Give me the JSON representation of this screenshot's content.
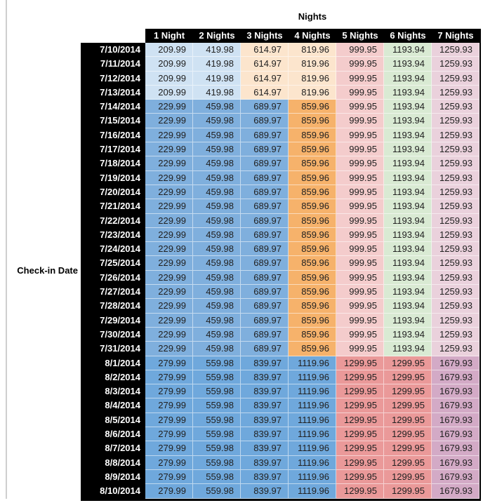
{
  "chart_data": {
    "type": "table",
    "title": "Nights",
    "row_axis_label": "Check-in Date",
    "columns": [
      "1 Night",
      "2 Nights",
      "3 Nights",
      "4 Nights",
      "5 Nights",
      "6 Nights",
      "7 Nights"
    ],
    "rows": [
      {
        "date": "7/10/2014",
        "group": "early_july",
        "values": [
          "209.99",
          "419.98",
          "614.97",
          "819.96",
          "999.95",
          "1193.94",
          "1259.93"
        ]
      },
      {
        "date": "7/11/2014",
        "group": "early_july",
        "values": [
          "209.99",
          "419.98",
          "614.97",
          "819.96",
          "999.95",
          "1193.94",
          "1259.93"
        ]
      },
      {
        "date": "7/12/2014",
        "group": "early_july",
        "values": [
          "209.99",
          "419.98",
          "614.97",
          "819.96",
          "999.95",
          "1193.94",
          "1259.93"
        ]
      },
      {
        "date": "7/13/2014",
        "group": "early_july",
        "values": [
          "209.99",
          "419.98",
          "614.97",
          "819.96",
          "999.95",
          "1193.94",
          "1259.93"
        ]
      },
      {
        "date": "7/14/2014",
        "group": "mid_july",
        "values": [
          "229.99",
          "459.98",
          "689.97",
          "859.96",
          "999.95",
          "1193.94",
          "1259.93"
        ]
      },
      {
        "date": "7/15/2014",
        "group": "mid_july",
        "values": [
          "229.99",
          "459.98",
          "689.97",
          "859.96",
          "999.95",
          "1193.94",
          "1259.93"
        ]
      },
      {
        "date": "7/16/2014",
        "group": "mid_july",
        "values": [
          "229.99",
          "459.98",
          "689.97",
          "859.96",
          "999.95",
          "1193.94",
          "1259.93"
        ]
      },
      {
        "date": "7/17/2014",
        "group": "mid_july",
        "values": [
          "229.99",
          "459.98",
          "689.97",
          "859.96",
          "999.95",
          "1193.94",
          "1259.93"
        ]
      },
      {
        "date": "7/18/2014",
        "group": "mid_july",
        "values": [
          "229.99",
          "459.98",
          "689.97",
          "859.96",
          "999.95",
          "1193.94",
          "1259.93"
        ]
      },
      {
        "date": "7/19/2014",
        "group": "mid_july",
        "values": [
          "229.99",
          "459.98",
          "689.97",
          "859.96",
          "999.95",
          "1193.94",
          "1259.93"
        ]
      },
      {
        "date": "7/20/2014",
        "group": "mid_july",
        "values": [
          "229.99",
          "459.98",
          "689.97",
          "859.96",
          "999.95",
          "1193.94",
          "1259.93"
        ]
      },
      {
        "date": "7/21/2014",
        "group": "mid_july",
        "values": [
          "229.99",
          "459.98",
          "689.97",
          "859.96",
          "999.95",
          "1193.94",
          "1259.93"
        ]
      },
      {
        "date": "7/22/2014",
        "group": "mid_july",
        "values": [
          "229.99",
          "459.98",
          "689.97",
          "859.96",
          "999.95",
          "1193.94",
          "1259.93"
        ]
      },
      {
        "date": "7/23/2014",
        "group": "mid_july",
        "values": [
          "229.99",
          "459.98",
          "689.97",
          "859.96",
          "999.95",
          "1193.94",
          "1259.93"
        ]
      },
      {
        "date": "7/24/2014",
        "group": "mid_july",
        "values": [
          "229.99",
          "459.98",
          "689.97",
          "859.96",
          "999.95",
          "1193.94",
          "1259.93"
        ]
      },
      {
        "date": "7/25/2014",
        "group": "mid_july",
        "values": [
          "229.99",
          "459.98",
          "689.97",
          "859.96",
          "999.95",
          "1193.94",
          "1259.93"
        ]
      },
      {
        "date": "7/26/2014",
        "group": "mid_july",
        "values": [
          "229.99",
          "459.98",
          "689.97",
          "859.96",
          "999.95",
          "1193.94",
          "1259.93"
        ]
      },
      {
        "date": "7/27/2014",
        "group": "mid_july",
        "values": [
          "229.99",
          "459.98",
          "689.97",
          "859.96",
          "999.95",
          "1193.94",
          "1259.93"
        ]
      },
      {
        "date": "7/28/2014",
        "group": "mid_july",
        "values": [
          "229.99",
          "459.98",
          "689.97",
          "859.96",
          "999.95",
          "1193.94",
          "1259.93"
        ]
      },
      {
        "date": "7/29/2014",
        "group": "mid_july",
        "values": [
          "229.99",
          "459.98",
          "689.97",
          "859.96",
          "999.95",
          "1193.94",
          "1259.93"
        ]
      },
      {
        "date": "7/30/2014",
        "group": "mid_july",
        "values": [
          "229.99",
          "459.98",
          "689.97",
          "859.96",
          "999.95",
          "1193.94",
          "1259.93"
        ]
      },
      {
        "date": "7/31/2014",
        "group": "mid_july",
        "values": [
          "229.99",
          "459.98",
          "689.97",
          "859.96",
          "999.95",
          "1193.94",
          "1259.93"
        ]
      },
      {
        "date": "8/1/2014",
        "group": "august",
        "values": [
          "279.99",
          "559.98",
          "839.97",
          "1119.96",
          "1299.95",
          "1299.95",
          "1679.93"
        ]
      },
      {
        "date": "8/2/2014",
        "group": "august",
        "values": [
          "279.99",
          "559.98",
          "839.97",
          "1119.96",
          "1299.95",
          "1299.95",
          "1679.93"
        ]
      },
      {
        "date": "8/3/2014",
        "group": "august",
        "values": [
          "279.99",
          "559.98",
          "839.97",
          "1119.96",
          "1299.95",
          "1299.95",
          "1679.93"
        ]
      },
      {
        "date": "8/4/2014",
        "group": "august",
        "values": [
          "279.99",
          "559.98",
          "839.97",
          "1119.96",
          "1299.95",
          "1299.95",
          "1679.93"
        ]
      },
      {
        "date": "8/5/2014",
        "group": "august",
        "values": [
          "279.99",
          "559.98",
          "839.97",
          "1119.96",
          "1299.95",
          "1299.95",
          "1679.93"
        ]
      },
      {
        "date": "8/6/2014",
        "group": "august",
        "values": [
          "279.99",
          "559.98",
          "839.97",
          "1119.96",
          "1299.95",
          "1299.95",
          "1679.93"
        ]
      },
      {
        "date": "8/7/2014",
        "group": "august",
        "values": [
          "279.99",
          "559.98",
          "839.97",
          "1119.96",
          "1299.95",
          "1299.95",
          "1679.93"
        ]
      },
      {
        "date": "8/8/2014",
        "group": "august",
        "values": [
          "279.99",
          "559.98",
          "839.97",
          "1119.96",
          "1299.95",
          "1299.95",
          "1679.93"
        ]
      },
      {
        "date": "8/9/2014",
        "group": "august",
        "values": [
          "279.99",
          "559.98",
          "839.97",
          "1119.96",
          "1299.95",
          "1299.95",
          "1679.93"
        ]
      },
      {
        "date": "8/10/2014",
        "group": "august",
        "values": [
          "279.99",
          "559.98",
          "839.97",
          "1119.96",
          "1299.95",
          "1299.95",
          "1679.93"
        ]
      }
    ]
  },
  "styles": {
    "header_bg": "#000000",
    "header_text_color": "#ffffff",
    "value_text_color": "#212121",
    "grid_line_color": "rgba(255,255,255,0.55)",
    "left_rule_color": "#cfcfcf",
    "color_groups": {
      "early_july": [
        "#cfe2f3",
        "#cfe2f3",
        "#fce5cd",
        "#fce5cd",
        "#f4cccc",
        "#d9ead3",
        "#ead1dc"
      ],
      "mid_july": [
        "#7fafdd",
        "#7fafdd",
        "#7fafdd",
        "#f6b26b",
        "#f4cccc",
        "#d9ead3",
        "#ead1dc"
      ],
      "august": [
        "#6fa8dc",
        "#6fa8dc",
        "#6fa8dc",
        "#6fa8dc",
        "#ea9999",
        "#ea9999",
        "#d3aac6"
      ]
    }
  }
}
